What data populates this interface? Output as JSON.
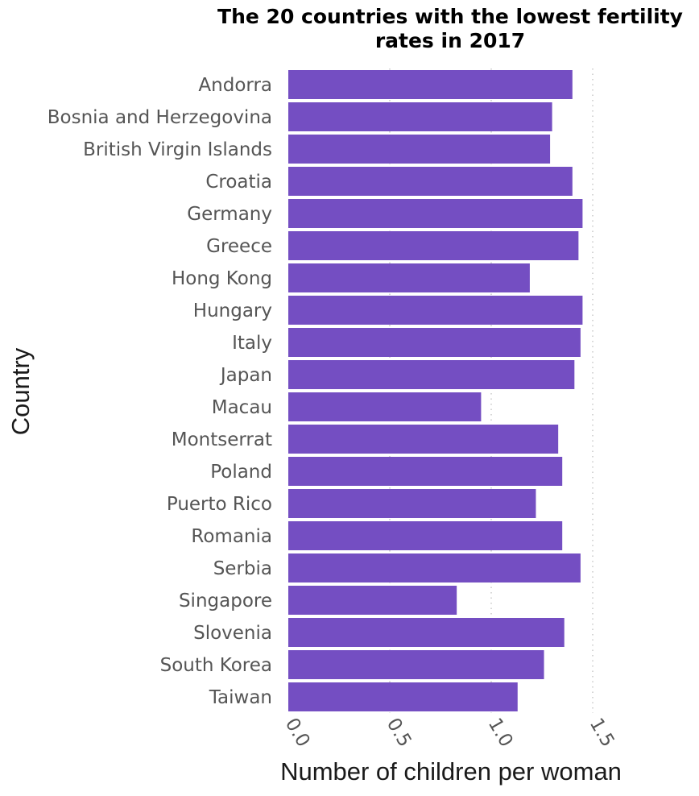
{
  "chart_data": {
    "type": "bar",
    "orientation": "horizontal",
    "title": "The 20 countries with the lowest fertility rates in 2017",
    "xlabel": "Number of children per woman",
    "ylabel": "Country",
    "categories": [
      "Andorra",
      "Bosnia and Herzegovina",
      "British Virgin Islands",
      "Croatia",
      "Germany",
      "Greece",
      "Hong Kong",
      "Hungary",
      "Italy",
      "Japan",
      "Macau",
      "Montserrat",
      "Poland",
      "Puerto Rico",
      "Romania",
      "Serbia",
      "Singapore",
      "Slovenia",
      "South Korea",
      "Taiwan"
    ],
    "values": [
      1.4,
      1.3,
      1.29,
      1.4,
      1.45,
      1.43,
      1.19,
      1.45,
      1.44,
      1.41,
      0.95,
      1.33,
      1.35,
      1.22,
      1.35,
      1.44,
      0.83,
      1.36,
      1.26,
      1.13
    ],
    "xlim": [
      0,
      1.5
    ],
    "xticks": [
      "0.0",
      "0.5",
      "1.0",
      "1.5"
    ],
    "tick_values": [
      0,
      0.5,
      1.0,
      1.5
    ],
    "grid": "vertical dotted",
    "legend": "none",
    "bar_color": "#744ec2",
    "grid_color": "#c8c8c8"
  }
}
